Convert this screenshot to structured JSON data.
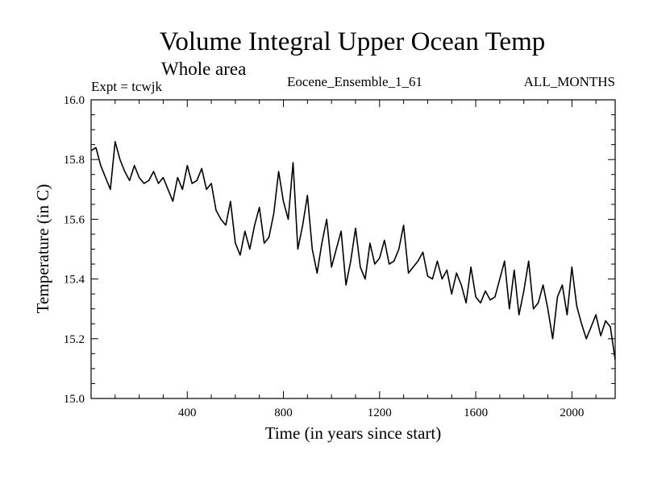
{
  "chart_data": {
    "type": "line",
    "title": "Volume Integral Upper Ocean Temp",
    "subtitle": "Whole area",
    "info_left": "Expt = tcwjk",
    "info_center": "Eocene_Ensemble_1_61",
    "info_right": "ALL_MONTHS",
    "xlabel": "Time (in years since start)",
    "ylabel": "Temperature (in C)",
    "xlim": [
      0,
      2180
    ],
    "ylim": [
      15.0,
      16.0
    ],
    "xticks": [
      400,
      800,
      1200,
      1600,
      2000
    ],
    "xtick_labels": [
      "400",
      "800",
      "1200",
      "1600",
      "2000"
    ],
    "yticks": [
      15.0,
      15.2,
      15.4,
      15.6,
      15.8,
      16.0
    ],
    "ytick_labels": [
      "15.0",
      "15.2",
      "15.4",
      "15.6",
      "15.8",
      "16.0"
    ],
    "grid": false,
    "series": [
      {
        "color": "#000000",
        "x": [
          0,
          20,
          40,
          60,
          80,
          100,
          120,
          140,
          160,
          180,
          200,
          220,
          240,
          260,
          280,
          300,
          320,
          340,
          360,
          380,
          400,
          420,
          440,
          460,
          480,
          500,
          520,
          540,
          560,
          580,
          600,
          620,
          640,
          660,
          680,
          700,
          720,
          740,
          760,
          780,
          800,
          820,
          840,
          860,
          880,
          900,
          920,
          940,
          960,
          980,
          1000,
          1020,
          1040,
          1060,
          1080,
          1100,
          1120,
          1140,
          1160,
          1180,
          1200,
          1220,
          1240,
          1260,
          1280,
          1300,
          1320,
          1340,
          1360,
          1380,
          1400,
          1420,
          1440,
          1460,
          1480,
          1500,
          1520,
          1540,
          1560,
          1580,
          1600,
          1620,
          1640,
          1660,
          1680,
          1700,
          1720,
          1740,
          1760,
          1780,
          1800,
          1820,
          1840,
          1860,
          1880,
          1900,
          1920,
          1940,
          1960,
          1980,
          2000,
          2020,
          2040,
          2060,
          2080,
          2100,
          2120,
          2140,
          2160,
          2180
        ],
        "y": [
          15.83,
          15.84,
          15.78,
          15.74,
          15.7,
          15.86,
          15.8,
          15.76,
          15.73,
          15.78,
          15.74,
          15.72,
          15.73,
          15.76,
          15.72,
          15.74,
          15.7,
          15.66,
          15.74,
          15.7,
          15.78,
          15.72,
          15.73,
          15.77,
          15.7,
          15.72,
          15.63,
          15.6,
          15.58,
          15.66,
          15.52,
          15.48,
          15.56,
          15.5,
          15.58,
          15.64,
          15.52,
          15.54,
          15.62,
          15.76,
          15.66,
          15.6,
          15.79,
          15.5,
          15.58,
          15.68,
          15.5,
          15.42,
          15.52,
          15.6,
          15.44,
          15.5,
          15.56,
          15.38,
          15.46,
          15.57,
          15.44,
          15.4,
          15.52,
          15.45,
          15.47,
          15.53,
          15.45,
          15.46,
          15.5,
          15.58,
          15.42,
          15.44,
          15.46,
          15.49,
          15.41,
          15.4,
          15.46,
          15.4,
          15.43,
          15.35,
          15.42,
          15.38,
          15.32,
          15.44,
          15.34,
          15.32,
          15.36,
          15.33,
          15.34,
          15.4,
          15.46,
          15.3,
          15.43,
          15.28,
          15.36,
          15.46,
          15.3,
          15.32,
          15.38,
          15.3,
          15.2,
          15.34,
          15.38,
          15.28,
          15.44,
          15.31,
          15.25,
          15.2,
          15.24,
          15.28,
          15.21,
          15.26,
          15.24,
          15.13
        ]
      }
    ]
  }
}
